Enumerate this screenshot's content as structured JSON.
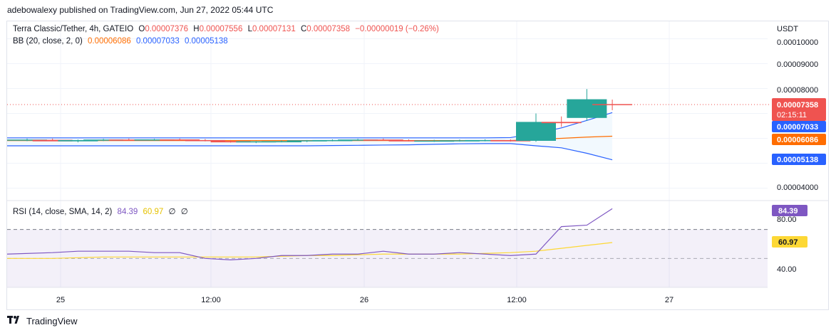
{
  "caption": "adebowalexy published on TradingView.com, Jun 27, 2022 05:44 UTC",
  "symbol": "Terra Classic/Tether, 4h, GATEIO",
  "ohlc": {
    "o_label": "O",
    "o": "0.00007376",
    "h_label": "H",
    "h": "0.00007556",
    "l_label": "L",
    "l": "0.00007131",
    "c_label": "C",
    "c": "0.00007358",
    "change": "−0.00000019 (−0.26%)"
  },
  "bb": {
    "label": "BB (20, close, 2, 0)",
    "basis": "0.00006086",
    "upper": "0.00007033",
    "lower": "0.00005138"
  },
  "rsi_legend": {
    "label": "RSI (14, close, SMA, 14, 2)",
    "rsi": "84.39",
    "sma": "60.97",
    "x1": "∅",
    "x2": "∅"
  },
  "currency": "USDT",
  "price_axis": [
    "0.00010000",
    "0.00009000",
    "0.00008000",
    "0.00004000"
  ],
  "price_tags": {
    "last": "0.00007358",
    "countdown": "02:15:11",
    "upper": "0.00007033",
    "basis": "0.00006086",
    "lower": "0.00005138"
  },
  "rsi_axis": [
    "80.00",
    "40.00"
  ],
  "rsi_tags": {
    "rsi": "84.39",
    "sma": "60.97"
  },
  "time_axis": [
    "25",
    "12:00",
    "26",
    "12:00",
    "27"
  ],
  "footer": {
    "brand": "TradingView"
  },
  "colors": {
    "up": "#26a69a",
    "down": "#ef5350",
    "upper": "#2962ff",
    "basis": "#ff6d00",
    "lower": "#2962ff",
    "rsi": "#7e57c2",
    "rsi_sma": "#fdd835",
    "band_fill": "#e3f2fd"
  },
  "chart_data": [
    {
      "type": "candlestick",
      "title": "Terra Classic/Tether, 4h, GATEIO",
      "ylim": [
        3.5e-05,
        0.000107
      ],
      "candles": [
        {
          "o": 5.943e-05,
          "h": 5.99e-05,
          "l": 5.89e-05,
          "c": 5.95e-05
        },
        {
          "o": 5.94e-05,
          "h": 5.99e-05,
          "l": 5.9e-05,
          "c": 5.88e-05
        },
        {
          "o": 5.88e-05,
          "h": 5.95e-05,
          "l": 5.84e-05,
          "c": 5.93e-05
        },
        {
          "o": 5.93e-05,
          "h": 5.98e-05,
          "l": 5.89e-05,
          "c": 5.95e-05
        },
        {
          "o": 5.95e-05,
          "h": 5.99e-05,
          "l": 5.91e-05,
          "c": 5.93e-05
        },
        {
          "o": 5.93e-05,
          "h": 5.98e-05,
          "l": 5.9e-05,
          "c": 5.955e-05
        },
        {
          "o": 5.955e-05,
          "h": 5.99e-05,
          "l": 5.91e-05,
          "c": 5.93e-05
        },
        {
          "o": 5.93e-05,
          "h": 5.97e-05,
          "l": 5.88e-05,
          "c": 5.89e-05
        },
        {
          "o": 5.89e-05,
          "h": 5.93e-05,
          "l": 5.83e-05,
          "c": 5.84e-05
        },
        {
          "o": 5.84e-05,
          "h": 5.89e-05,
          "l": 5.81e-05,
          "c": 5.88e-05
        },
        {
          "o": 5.88e-05,
          "h": 5.92e-05,
          "l": 5.84e-05,
          "c": 5.885e-05
        },
        {
          "o": 5.885e-05,
          "h": 5.93e-05,
          "l": 5.85e-05,
          "c": 5.92e-05
        },
        {
          "o": 5.92e-05,
          "h": 5.96e-05,
          "l": 5.88e-05,
          "c": 5.93e-05
        },
        {
          "o": 5.93e-05,
          "h": 5.98e-05,
          "l": 5.9e-05,
          "c": 5.95e-05
        },
        {
          "o": 5.95e-05,
          "h": 5.99e-05,
          "l": 5.9e-05,
          "c": 5.92e-05
        },
        {
          "o": 5.92e-05,
          "h": 5.96e-05,
          "l": 5.88e-05,
          "c": 5.9e-05
        },
        {
          "o": 5.9e-05,
          "h": 5.94e-05,
          "l": 5.86e-05,
          "c": 5.91e-05
        },
        {
          "o": 5.91e-05,
          "h": 5.95e-05,
          "l": 5.87e-05,
          "c": 5.92e-05
        },
        {
          "o": 5.92e-05,
          "h": 5.96e-05,
          "l": 5.88e-05,
          "c": 5.93e-05
        },
        {
          "o": 5.93e-05,
          "h": 5.96e-05,
          "l": 5.87e-05,
          "c": 5.88e-05
        },
        {
          "o": 5.9e-05,
          "h": 7e-05,
          "l": 5.86e-05,
          "c": 6.66e-05
        },
        {
          "o": 6.66e-05,
          "h": 6.88e-05,
          "l": 6.46e-05,
          "c": 6.61e-05
        },
        {
          "o": 6.82e-05,
          "h": 7.98e-05,
          "l": 6.7e-05,
          "c": 7.57e-05
        },
        {
          "o": 7.376e-05,
          "h": 7.556e-05,
          "l": 7.131e-05,
          "c": 7.358e-05
        }
      ],
      "bollinger": {
        "upper": [
          6.02e-05,
          6.02e-05,
          6.02e-05,
          6.02e-05,
          6.02e-05,
          6.02e-05,
          6.02e-05,
          6.02e-05,
          6.02e-05,
          6.02e-05,
          6.02e-05,
          6.02e-05,
          6.02e-05,
          6.02e-05,
          6.02e-05,
          6.02e-05,
          6.02e-05,
          6.02e-05,
          6.02e-05,
          6.03e-05,
          6.2e-05,
          6.42e-05,
          6.72e-05,
          7.033e-05
        ],
        "basis": [
          5.91e-05,
          5.91e-05,
          5.91e-05,
          5.91e-05,
          5.91e-05,
          5.91e-05,
          5.91e-05,
          5.91e-05,
          5.91e-05,
          5.91e-05,
          5.91e-05,
          5.91e-05,
          5.91e-05,
          5.91e-05,
          5.91e-05,
          5.91e-05,
          5.91e-05,
          5.91e-05,
          5.91e-05,
          5.91e-05,
          5.96e-05,
          6e-05,
          6.05e-05,
          6.086e-05
        ],
        "lower": [
          5.7e-05,
          5.7e-05,
          5.7e-05,
          5.7e-05,
          5.7e-05,
          5.7e-05,
          5.7e-05,
          5.7e-05,
          5.7e-05,
          5.7e-05,
          5.7e-05,
          5.7e-05,
          5.71e-05,
          5.72e-05,
          5.73e-05,
          5.74e-05,
          5.76e-05,
          5.78e-05,
          5.79e-05,
          5.79e-05,
          5.7e-05,
          5.62e-05,
          5.4e-05,
          5.138e-05
        ]
      },
      "x_ticks": [
        "25",
        "12:00",
        "26",
        "12:00",
        "27"
      ]
    },
    {
      "type": "line",
      "title": "RSI (14, close, SMA, 14, 2)",
      "ylim": [
        30,
        90
      ],
      "bands": {
        "upper": 70,
        "middle": 50,
        "lower": 30
      },
      "series": [
        {
          "name": "RSI",
          "values": [
            53,
            54,
            55,
            55,
            55,
            54,
            54,
            50,
            49,
            50,
            52,
            52,
            53,
            53,
            55,
            53,
            53,
            54,
            53,
            52,
            53,
            72,
            73,
            84.39
          ]
        },
        {
          "name": "SMA",
          "values": [
            50,
            50,
            50.5,
            51,
            51,
            51,
            51,
            51,
            51,
            51,
            51.5,
            52,
            52,
            52.5,
            53,
            53,
            53,
            53,
            53.5,
            54,
            55,
            57,
            59,
            60.97
          ]
        }
      ]
    }
  ]
}
